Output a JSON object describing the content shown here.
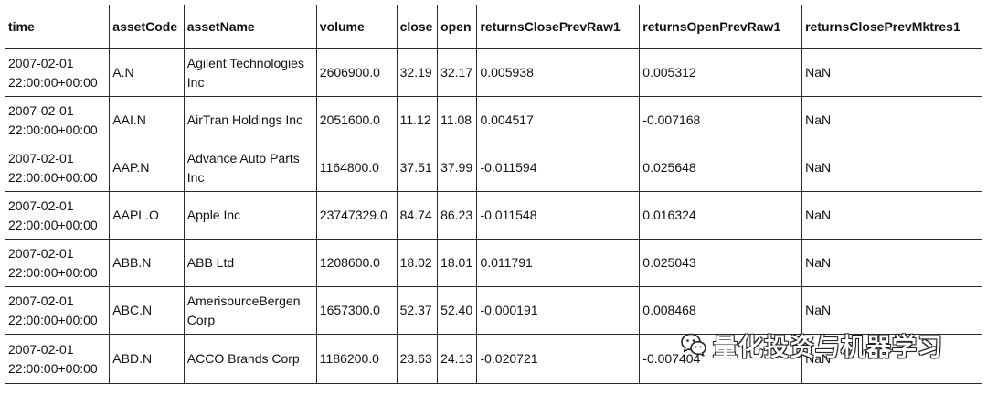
{
  "table": {
    "headers": [
      "time",
      "assetCode",
      "assetName",
      "volume",
      "close",
      "open",
      "returnsClosePrevRaw1",
      "returnsOpenPrevRaw1",
      "returnsClosePrevMktres1"
    ],
    "rows": [
      {
        "date": "2007-02-01",
        "clock": "22:00:00+00:00",
        "assetCode": "A.N",
        "assetName": "Agilent Technologies Inc",
        "volume": "2606900.0",
        "close": "32.19",
        "open": "32.17",
        "returnsClosePrevRaw1": "0.005938",
        "returnsOpenPrevRaw1": "0.005312",
        "returnsClosePrevMktres1": "NaN"
      },
      {
        "date": "2007-02-01",
        "clock": "22:00:00+00:00",
        "assetCode": "AAI.N",
        "assetName": "AirTran Holdings Inc",
        "volume": "2051600.0",
        "close": "11.12",
        "open": "11.08",
        "returnsClosePrevRaw1": "0.004517",
        "returnsOpenPrevRaw1": "-0.007168",
        "returnsClosePrevMktres1": "NaN"
      },
      {
        "date": "2007-02-01",
        "clock": "22:00:00+00:00",
        "assetCode": "AAP.N",
        "assetName": "Advance Auto Parts Inc",
        "volume": "1164800.0",
        "close": "37.51",
        "open": "37.99",
        "returnsClosePrevRaw1": "-0.011594",
        "returnsOpenPrevRaw1": "0.025648",
        "returnsClosePrevMktres1": "NaN"
      },
      {
        "date": "2007-02-01",
        "clock": "22:00:00+00:00",
        "assetCode": "AAPL.O",
        "assetName": "Apple Inc",
        "volume": "23747329.0",
        "close": "84.74",
        "open": "86.23",
        "returnsClosePrevRaw1": "-0.011548",
        "returnsOpenPrevRaw1": "0.016324",
        "returnsClosePrevMktres1": "NaN"
      },
      {
        "date": "2007-02-01",
        "clock": "22:00:00+00:00",
        "assetCode": "ABB.N",
        "assetName": "ABB Ltd",
        "volume": "1208600.0",
        "close": "18.02",
        "open": "18.01",
        "returnsClosePrevRaw1": "0.011791",
        "returnsOpenPrevRaw1": "0.025043",
        "returnsClosePrevMktres1": "NaN"
      },
      {
        "date": "2007-02-01",
        "clock": "22:00:00+00:00",
        "assetCode": "ABC.N",
        "assetName": "AmerisourceBergen Corp",
        "volume": "1657300.0",
        "close": "52.37",
        "open": "52.40",
        "returnsClosePrevRaw1": "-0.000191",
        "returnsOpenPrevRaw1": "0.008468",
        "returnsClosePrevMktres1": "NaN"
      },
      {
        "date": "2007-02-01",
        "clock": "22:00:00+00:00",
        "assetCode": "ABD.N",
        "assetName": "ACCO Brands Corp",
        "volume": "1186200.0",
        "close": "23.63",
        "open": "24.13",
        "returnsClosePrevRaw1": "-0.020721",
        "returnsOpenPrevRaw1": "-0.007404",
        "returnsClosePrevMktres1": "NaN"
      }
    ]
  },
  "watermark": {
    "text": "量化投资与机器学习",
    "icon": "wechat-icon"
  }
}
